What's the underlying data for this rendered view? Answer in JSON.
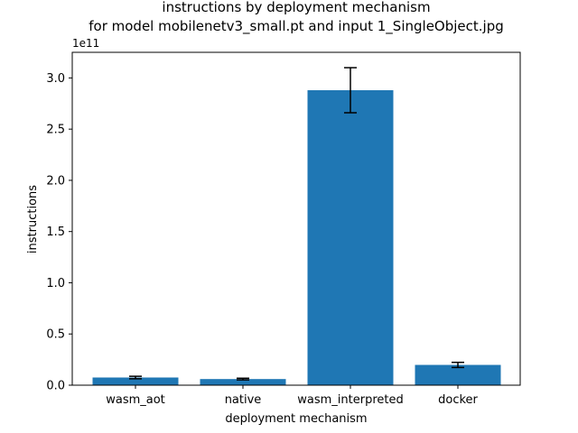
{
  "chart_data": {
    "type": "bar",
    "title_line1": "instructions by deployment mechanism",
    "title_line2": "for model mobilenetv3_small.pt and input 1_SingleObject.jpg",
    "xlabel": "deployment mechanism",
    "ylabel": "instructions",
    "y_multiplier_label": "1e11",
    "y_scale": 100000000000,
    "ylim": [
      0,
      3.25
    ],
    "yticks": [
      0.0,
      0.5,
      1.0,
      1.5,
      2.0,
      2.5,
      3.0
    ],
    "ytick_labels": [
      "0.0",
      "0.5",
      "1.0",
      "1.5",
      "2.0",
      "2.5",
      "3.0"
    ],
    "categories": [
      "wasm_aot",
      "native",
      "wasm_interpreted",
      "docker"
    ],
    "values": [
      0.075,
      0.06,
      2.88,
      0.198
    ],
    "errors": [
      0.012,
      0.008,
      0.22,
      0.025
    ],
    "bar_color": "#1f77b4",
    "grid": false,
    "legend": "none"
  }
}
